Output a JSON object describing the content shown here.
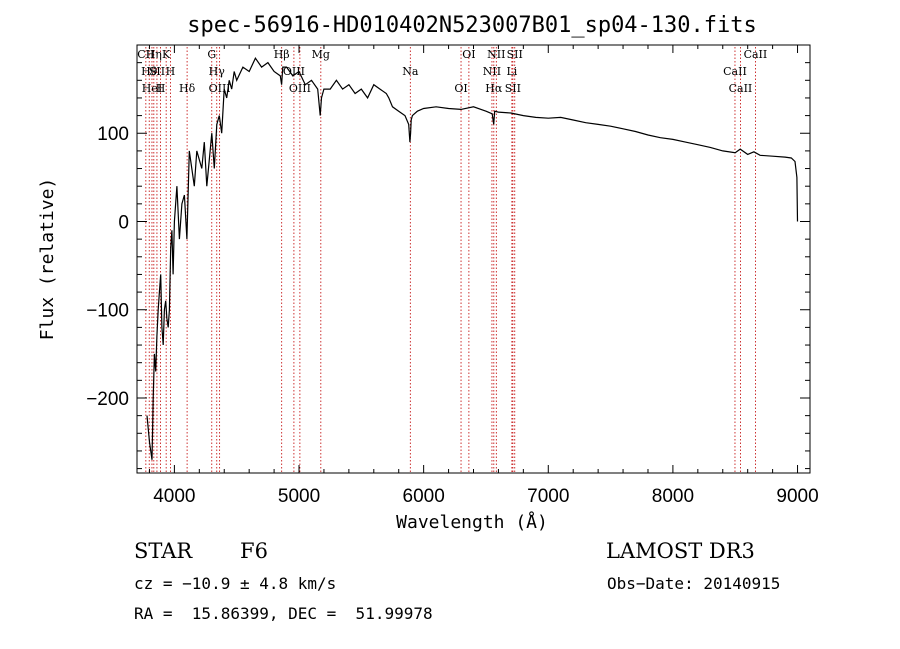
{
  "chart_data": {
    "type": "line",
    "title": "spec-56916-HD010402N523007B01_sp04-130.fits",
    "xlabel": "Wavelength (Å)",
    "ylabel": "Flux (relative)",
    "xlim": [
      3700,
      9100
    ],
    "ylim": [
      -285,
      200
    ],
    "xticks": [
      4000,
      5000,
      6000,
      7000,
      8000,
      9000
    ],
    "yticks": [
      -200,
      -100,
      0,
      100
    ],
    "series": [
      {
        "name": "spectrum",
        "x": [
          3780,
          3800,
          3820,
          3830,
          3840,
          3850,
          3860,
          3870,
          3880,
          3890,
          3900,
          3910,
          3920,
          3930,
          3940,
          3950,
          3960,
          3970,
          3980,
          3990,
          4000,
          4020,
          4040,
          4060,
          4080,
          4100,
          4120,
          4140,
          4160,
          4180,
          4200,
          4220,
          4240,
          4260,
          4280,
          4300,
          4320,
          4340,
          4360,
          4380,
          4400,
          4420,
          4440,
          4460,
          4480,
          4500,
          4550,
          4600,
          4650,
          4700,
          4750,
          4800,
          4850,
          4860,
          4870,
          4900,
          4950,
          5000,
          5050,
          5100,
          5150,
          5170,
          5180,
          5190,
          5200,
          5250,
          5300,
          5350,
          5400,
          5450,
          5500,
          5550,
          5600,
          5650,
          5700,
          5720,
          5750,
          5800,
          5850,
          5880,
          5890,
          5895,
          5900,
          5910,
          5950,
          6000,
          6100,
          6200,
          6300,
          6400,
          6500,
          6550,
          6562,
          6570,
          6600,
          6700,
          6800,
          6900,
          7000,
          7100,
          7200,
          7300,
          7400,
          7500,
          7600,
          7700,
          7800,
          7900,
          8000,
          8100,
          8200,
          8300,
          8400,
          8500,
          8540,
          8600,
          8650,
          8700,
          8800,
          8900,
          8950,
          8980,
          8995,
          9000
        ],
        "values": [
          -220,
          -250,
          -270,
          -200,
          -150,
          -170,
          -130,
          -100,
          -80,
          -60,
          -120,
          -140,
          -100,
          -90,
          -110,
          -120,
          -100,
          -30,
          -10,
          -60,
          0,
          40,
          -20,
          20,
          30,
          -20,
          80,
          60,
          40,
          80,
          70,
          60,
          90,
          40,
          70,
          100,
          60,
          110,
          120,
          100,
          150,
          140,
          160,
          150,
          170,
          160,
          175,
          170,
          185,
          175,
          180,
          170,
          165,
          155,
          175,
          175,
          165,
          170,
          155,
          160,
          150,
          120,
          140,
          145,
          150,
          150,
          160,
          150,
          155,
          145,
          150,
          140,
          155,
          150,
          145,
          140,
          130,
          125,
          120,
          110,
          90,
          100,
          115,
          120,
          125,
          128,
          130,
          128,
          127,
          130,
          125,
          122,
          110,
          125,
          124,
          123,
          120,
          118,
          117,
          118,
          115,
          112,
          110,
          108,
          105,
          102,
          98,
          95,
          93,
          90,
          87,
          84,
          80,
          78,
          82,
          76,
          79,
          75,
          74,
          73,
          72,
          68,
          50,
          0
        ]
      }
    ],
    "lines": [
      {
        "x": 3771,
        "label": "CII"
      },
      {
        "x": 3798,
        "label": "Hθ"
      },
      {
        "x": 3820,
        "label": "HeI"
      },
      {
        "x": 3835,
        "label": "Hη"
      },
      {
        "x": 3860,
        "label": "SII"
      },
      {
        "x": 3889,
        "label": "H"
      },
      {
        "x": 3934,
        "label": "K"
      },
      {
        "x": 3968,
        "label": "H"
      },
      {
        "x": 4102,
        "label": "Hδ"
      },
      {
        "x": 4300,
        "label": "G"
      },
      {
        "x": 4340,
        "label": "Hγ"
      },
      {
        "x": 4363,
        "label": "OIII"
      },
      {
        "x": 4861,
        "label": "Hβ"
      },
      {
        "x": 4959,
        "label": "OIII"
      },
      {
        "x": 5007,
        "label": "OIII"
      },
      {
        "x": 5175,
        "label": "Mg"
      },
      {
        "x": 5893,
        "label": "Na"
      },
      {
        "x": 6300,
        "label": "OI"
      },
      {
        "x": 6363,
        "label": "OI"
      },
      {
        "x": 6548,
        "label": "NII"
      },
      {
        "x": 6563,
        "label": "Hα"
      },
      {
        "x": 6583,
        "label": "NII"
      },
      {
        "x": 6708,
        "label": "Li"
      },
      {
        "x": 6716,
        "label": "SII"
      },
      {
        "x": 6731,
        "label": "SII"
      },
      {
        "x": 8498,
        "label": "CaII"
      },
      {
        "x": 8542,
        "label": "CaII"
      },
      {
        "x": 8662,
        "label": "CaII"
      }
    ]
  },
  "info": {
    "class_label": "STAR",
    "subclass": "F6",
    "survey": "LAMOST DR3",
    "cz": "cz = −10.9 ± 4.8 km/s",
    "obs_date": "Obs−Date: 20140915",
    "radec": "RA =  15.86399, DEC =  51.99978"
  },
  "colors": {
    "line_marker": "#c00000",
    "spectrum": "#000000"
  }
}
